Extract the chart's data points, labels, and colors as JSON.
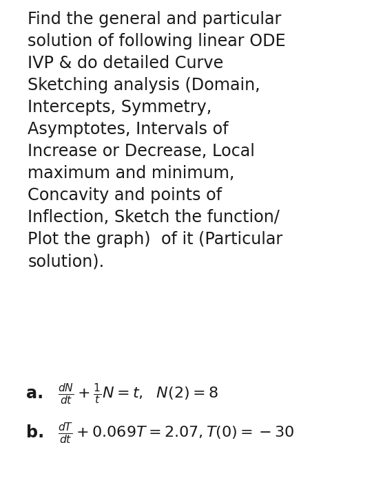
{
  "background_color": "#ffffff",
  "text_color": "#1a1a1a",
  "main_text": "Find the general and particular\nsolution of following linear ODE\nIVP & do detailed Curve\nSketching analysis (Domain,\nIntercepts, Symmetry,\nAsymptotes, Intervals of\nIncrease or Decrease, Local\nmaximum and minimum,\nConcavity and points of\nInflection, Sketch the function/\nPlot the graph)  of it (Particular\nsolution).",
  "label_a": "a.",
  "label_b": "b.",
  "eq_a": "$\\frac{dN}{dt} + \\frac{1}{t}N = t,\\ \\ N(2) = 8$",
  "eq_b": "$\\frac{dT}{dt} + 0.069T = 2.07, T(0) = -30$",
  "main_fontsize": 17.2,
  "label_fontsize": 17.2,
  "eq_fontsize": 16.0,
  "figwidth": 5.4,
  "figheight": 7.11,
  "dpi": 100
}
